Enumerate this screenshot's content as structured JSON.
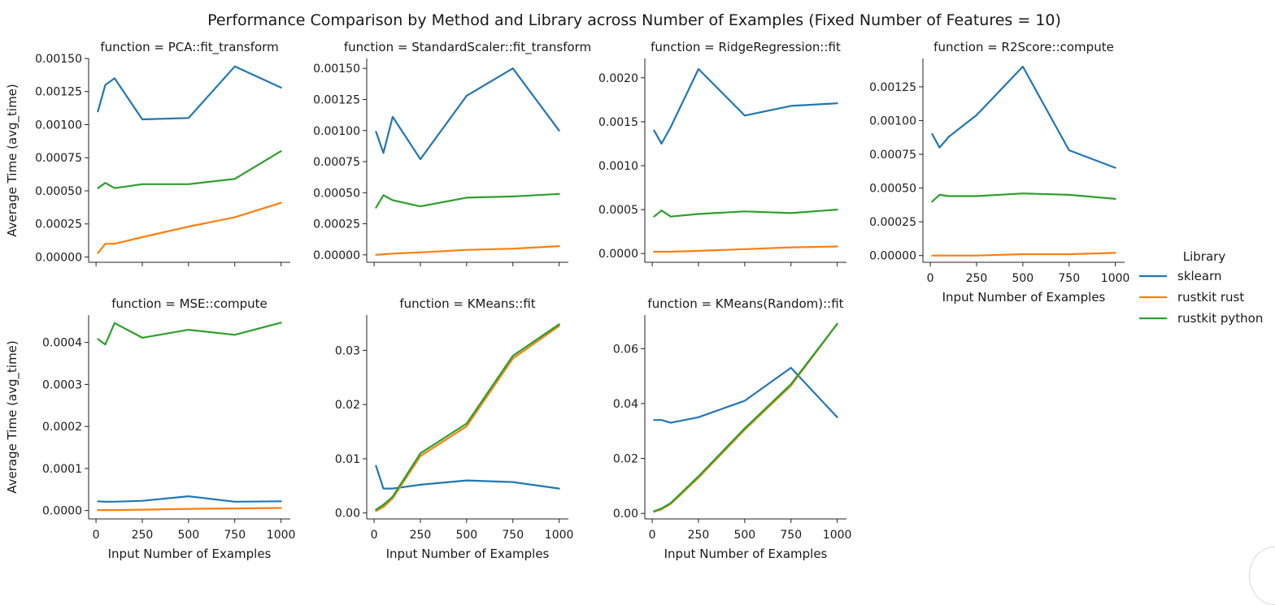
{
  "chart_data": {
    "type": "line",
    "title": "Performance Comparison by Method and Library across Number of Examples (Fixed Number of Features = 10)",
    "legend": {
      "title": "Library",
      "placement": "right",
      "entries": [
        {
          "name": "sklearn",
          "color": "#1f77b4"
        },
        {
          "name": "rustkit rust",
          "color": "#ff7f0e"
        },
        {
          "name": "rustkit python",
          "color": "#2ca02c"
        }
      ]
    },
    "x": [
      10,
      50,
      100,
      250,
      500,
      750,
      1000
    ],
    "xlabel": "Input Number of Examples",
    "ylabel": "Average Time (avg_time)",
    "xticks": [
      "0",
      "250",
      "500",
      "750",
      "1000"
    ],
    "xtick_values": [
      0,
      250,
      500,
      750,
      1000
    ],
    "xlim": [
      -40,
      1050
    ],
    "panels": [
      {
        "title": "function = PCA::fit_transform",
        "ylim": [
          -4e-05,
          0.0015
        ],
        "yticks": [
          "0.00000",
          "0.00025",
          "0.00050",
          "0.00075",
          "0.00100",
          "0.00125",
          "0.00150"
        ],
        "ytick_values": [
          0,
          0.00025,
          0.0005,
          0.00075,
          0.001,
          0.00125,
          0.0015
        ],
        "series": [
          {
            "name": "sklearn",
            "values": [
              0.0011,
              0.0013,
              0.00135,
              0.00104,
              0.00105,
              0.00144,
              0.00128
            ]
          },
          {
            "name": "rustkit rust",
            "values": [
              3e-05,
              0.0001,
              0.0001,
              0.00015,
              0.00023,
              0.0003,
              0.00041
            ]
          },
          {
            "name": "rustkit python",
            "values": [
              0.00052,
              0.00056,
              0.00052,
              0.00055,
              0.00055,
              0.00059,
              0.0008
            ]
          }
        ]
      },
      {
        "title": "function = StandardScaler::fit_transform",
        "ylim": [
          -6e-05,
          0.00158
        ],
        "yticks": [
          "0.00000",
          "0.00025",
          "0.00050",
          "0.00075",
          "0.00100",
          "0.00125",
          "0.00150"
        ],
        "ytick_values": [
          0,
          0.00025,
          0.0005,
          0.00075,
          0.001,
          0.00125,
          0.0015
        ],
        "series": [
          {
            "name": "sklearn",
            "values": [
              0.00099,
              0.00082,
              0.00111,
              0.00077,
              0.00128,
              0.0015,
              0.001
            ]
          },
          {
            "name": "rustkit rust",
            "values": [
              0.0,
              5e-06,
              1e-05,
              2e-05,
              4e-05,
              5e-05,
              7e-05
            ]
          },
          {
            "name": "rustkit python",
            "values": [
              0.00038,
              0.00048,
              0.00044,
              0.00039,
              0.00046,
              0.00047,
              0.00049
            ]
          }
        ]
      },
      {
        "title": "function = RidgeRegression::fit",
        "ylim": [
          -0.0001,
          0.00222
        ],
        "yticks": [
          "0.0000",
          "0.0005",
          "0.0010",
          "0.0015",
          "0.0020"
        ],
        "ytick_values": [
          0,
          0.0005,
          0.001,
          0.0015,
          0.002
        ],
        "series": [
          {
            "name": "sklearn",
            "values": [
              0.0014,
              0.00125,
              0.00144,
              0.0021,
              0.00157,
              0.00168,
              0.00171
            ]
          },
          {
            "name": "rustkit rust",
            "values": [
              2e-05,
              2e-05,
              2e-05,
              3e-05,
              5e-05,
              7e-05,
              8e-05
            ]
          },
          {
            "name": "rustkit python",
            "values": [
              0.00042,
              0.00049,
              0.00042,
              0.00045,
              0.00048,
              0.00046,
              0.0005
            ]
          }
        ]
      },
      {
        "title": "function = R2Score::compute",
        "ylim": [
          -5e-05,
          0.00146
        ],
        "yticks": [
          "0.00000",
          "0.00025",
          "0.00050",
          "0.00075",
          "0.00100",
          "0.00125"
        ],
        "ytick_values": [
          0,
          0.00025,
          0.0005,
          0.00075,
          0.001,
          0.00125
        ],
        "series": [
          {
            "name": "sklearn",
            "values": [
              0.0009,
              0.0008,
              0.00088,
              0.00104,
              0.0014,
              0.00078,
              0.00065
            ]
          },
          {
            "name": "rustkit rust",
            "values": [
              0.0,
              0.0,
              0.0,
              0.0,
              1e-05,
              1e-05,
              2e-05
            ]
          },
          {
            "name": "rustkit python",
            "values": [
              0.0004,
              0.00045,
              0.00044,
              0.00044,
              0.00046,
              0.00045,
              0.00042
            ]
          }
        ]
      },
      {
        "title": "function = MSE::compute",
        "ylim": [
          -2e-05,
          0.000465
        ],
        "yticks": [
          "0.0000",
          "0.0001",
          "0.0002",
          "0.0003",
          "0.0004"
        ],
        "ytick_values": [
          0,
          0.0001,
          0.0002,
          0.0003,
          0.0004
        ],
        "series": [
          {
            "name": "sklearn",
            "values": [
              2.2e-05,
              2.1e-05,
              2.1e-05,
              2.3e-05,
              3.4e-05,
              2.1e-05,
              2.2e-05
            ]
          },
          {
            "name": "rustkit rust",
            "values": [
              1e-06,
              1e-06,
              1e-06,
              2e-06,
              4e-06,
              5e-06,
              6e-06
            ]
          },
          {
            "name": "rustkit python",
            "values": [
              0.000408,
              0.000395,
              0.000446,
              0.000411,
              0.00043,
              0.000418,
              0.000447
            ]
          }
        ]
      },
      {
        "title": "function = KMeans::fit",
        "ylim": [
          -0.0011,
          0.0365
        ],
        "yticks": [
          "0.00",
          "0.01",
          "0.02",
          "0.03"
        ],
        "ytick_values": [
          0,
          0.01,
          0.02,
          0.03
        ],
        "series": [
          {
            "name": "sklearn",
            "values": [
              0.0087,
              0.0045,
              0.0045,
              0.0052,
              0.006,
              0.0057,
              0.0045
            ]
          },
          {
            "name": "rustkit rust",
            "values": [
              0.0004,
              0.0011,
              0.0027,
              0.0105,
              0.016,
              0.0285,
              0.0345
            ]
          },
          {
            "name": "rustkit python",
            "values": [
              0.0006,
              0.0015,
              0.003,
              0.011,
              0.0165,
              0.029,
              0.0348
            ]
          }
        ]
      },
      {
        "title": "function = KMeans(Random)::fit",
        "ylim": [
          -0.002,
          0.0722
        ],
        "yticks": [
          "0.00",
          "0.02",
          "0.04",
          "0.06"
        ],
        "ytick_values": [
          0,
          0.02,
          0.04,
          0.06
        ],
        "series": [
          {
            "name": "sklearn",
            "values": [
              0.034,
              0.034,
              0.033,
              0.035,
              0.041,
              0.053,
              0.035
            ]
          },
          {
            "name": "rustkit rust",
            "values": [
              0.0006,
              0.0015,
              0.0035,
              0.013,
              0.0305,
              0.0465,
              0.069
            ]
          },
          {
            "name": "rustkit python",
            "values": [
              0.0008,
              0.0018,
              0.0038,
              0.0135,
              0.031,
              0.047,
              0.069
            ]
          }
        ]
      }
    ]
  }
}
